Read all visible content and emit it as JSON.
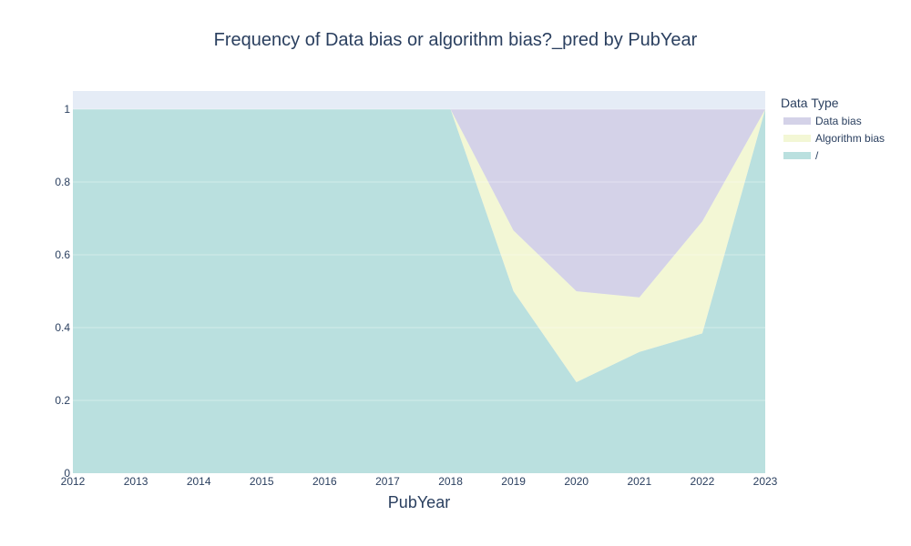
{
  "chart_data": {
    "type": "area",
    "title": "Frequency of Data bias or algorithm bias?_pred by PubYear",
    "xlabel": "PubYear",
    "ylabel": "",
    "x": [
      2012,
      2013,
      2014,
      2015,
      2016,
      2017,
      2018,
      2019,
      2020,
      2021,
      2022,
      2023
    ],
    "xlim": [
      2012,
      2023
    ],
    "ylim": [
      0,
      1.05
    ],
    "yticks": [
      0,
      0.2,
      0.4,
      0.6,
      0.8,
      1
    ],
    "grid": true,
    "stacked": true,
    "legend_title": "Data Type",
    "legend_position": "right",
    "series": [
      {
        "name": "Data bias",
        "color": "#d4d2e8",
        "values": [
          0,
          0,
          0,
          0,
          0,
          0,
          0,
          0.333,
          0.5,
          0.517,
          0.308,
          0
        ]
      },
      {
        "name": "Algorithm bias",
        "color": "#f3f7d5",
        "values": [
          0,
          0,
          0,
          0,
          0,
          0,
          0,
          0.167,
          0.25,
          0.15,
          0.308,
          0
        ]
      },
      {
        "name": "/",
        "color": "#bae0df",
        "values": [
          1,
          1,
          1,
          1,
          1,
          1,
          1,
          0.5,
          0.25,
          0.333,
          0.384,
          1
        ]
      }
    ]
  }
}
